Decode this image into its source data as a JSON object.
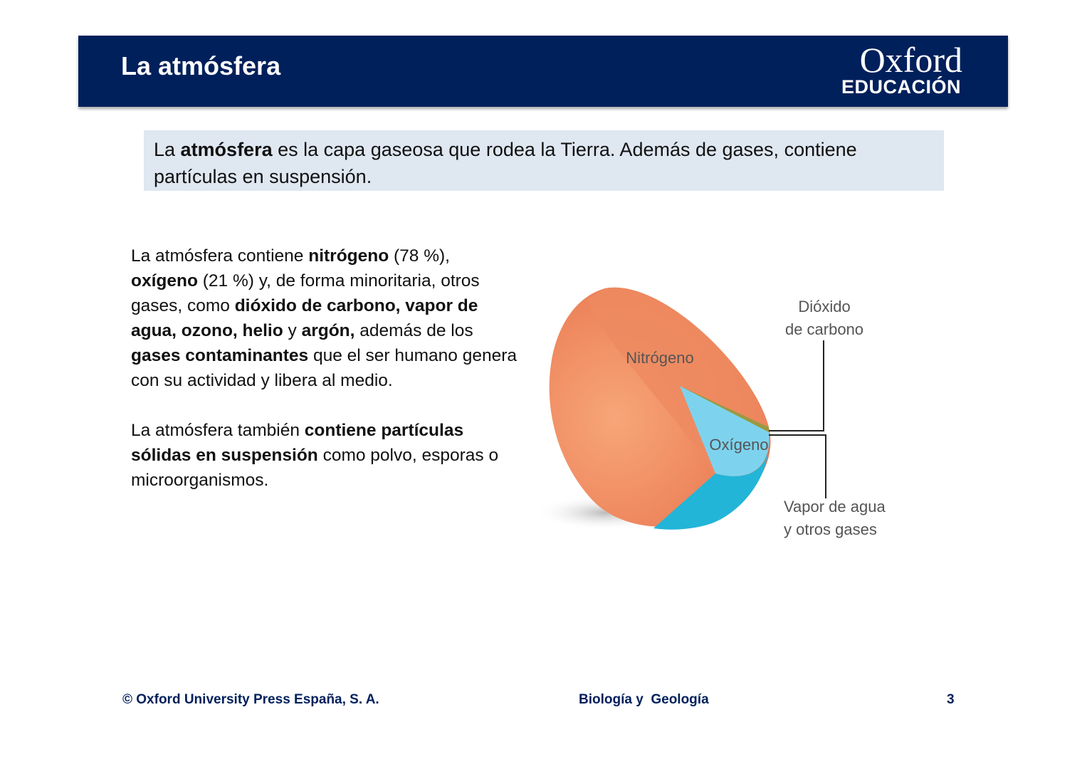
{
  "header": {
    "title": "La atmósfera",
    "logo": [
      "Oxford",
      "EDUCACIÓN"
    ]
  },
  "intro": {
    "runs": [
      {
        "text": "La ",
        "bold": false
      },
      {
        "text": "atmósfera",
        "bold": true
      },
      {
        "text": " es la capa gaseosa que rodea la Tierra. Además de gases, contiene partículas en suspensión.",
        "bold": false
      }
    ]
  },
  "body": {
    "paragraphs": [
      {
        "runs": [
          {
            "text": "La atmósfera contiene ",
            "bold": false
          },
          {
            "text": "nitrógeno",
            "bold": true
          },
          {
            "text": " (78 %), ",
            "bold": false
          },
          {
            "text": "oxígeno",
            "bold": true
          },
          {
            "text": " (21 %) y, de forma minoritaria, otros gases, como ",
            "bold": false
          },
          {
            "text": "dióxido de carbono, vapor de agua, ozono, helio",
            "bold": true
          },
          {
            "text": " y ",
            "bold": false
          },
          {
            "text": "argón,",
            "bold": true
          },
          {
            "text": " además de los ",
            "bold": false
          },
          {
            "text": "gases contaminantes",
            "bold": true
          },
          {
            "text": " que el ser humano genera con su actividad y libera al medio.",
            "bold": false
          }
        ]
      },
      {
        "runs": [
          {
            "text": "La atmósfera también ",
            "bold": false
          },
          {
            "text": "contiene partículas sólidas en suspensión",
            "bold": true
          },
          {
            "text": " como polvo, esporas o microorganismos.",
            "bold": false
          }
        ]
      }
    ]
  },
  "figure": {
    "labels": {
      "nitrogen": [
        "Nitrógeno"
      ],
      "oxygen": [
        "Oxígeno"
      ],
      "co2": [
        "Dióxido",
        "de carbono"
      ],
      "vapor": [
        "Vapor de agua",
        "y otros gases"
      ]
    }
  },
  "footer": {
    "left": "© Oxford University Press España, S. A.",
    "center": "Biología y  Geología",
    "right": "3"
  }
}
